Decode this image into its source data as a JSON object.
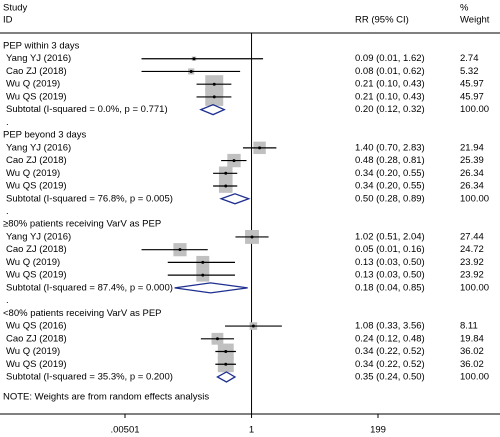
{
  "chart_data": {
    "type": "forest",
    "header": {
      "study": "Study",
      "id": "ID",
      "effect": "RR (95% CI)",
      "pct": "%",
      "weight": "Weight"
    },
    "log": true,
    "xlim": [
      0.00501,
      199
    ],
    "xticks": [
      {
        "value": 0.00501,
        "label": ".00501"
      },
      1,
      199
    ],
    "null_line": 1,
    "box_color": "#c0c0c0",
    "diamond_color": "#1f2f8f",
    "groups": [
      {
        "name": "PEP within 3 days",
        "studies": [
          {
            "id": "Yang YJ (2016)",
            "rr": 0.09,
            "lower": 0.01,
            "upper": 1.62,
            "label": "0.09 (0.01, 1.62)",
            "weight": 2.74
          },
          {
            "id": "Cao ZJ (2018)",
            "rr": 0.08,
            "lower": 0.01,
            "upper": 0.62,
            "label": "0.08 (0.01, 0.62)",
            "weight": 5.32
          },
          {
            "id": "Wu Q (2019)",
            "rr": 0.21,
            "lower": 0.1,
            "upper": 0.43,
            "label": "0.21 (0.10, 0.43)",
            "weight": 45.97
          },
          {
            "id": "Wu QS (2019)",
            "rr": 0.21,
            "lower": 0.1,
            "upper": 0.43,
            "label": "0.21 (0.10, 0.43)",
            "weight": 45.97
          }
        ],
        "subtotal": {
          "name": "Subtotal  (I-squared = 0.0%, p = 0.771)",
          "rr": 0.2,
          "lower": 0.12,
          "upper": 0.32,
          "label": "0.20 (0.12, 0.32)",
          "weight": {
            "value": 100,
            "label": "100.00"
          }
        }
      },
      {
        "dot": ".",
        "name": "PEP beyond 3 days",
        "studies": [
          {
            "id": "Yang YJ (2016)",
            "rr": 1.4,
            "lower": 0.7,
            "upper": 2.83,
            "label": "1.40 (0.70, 2.83)",
            "weight": 21.94
          },
          {
            "id": "Cao ZJ (2018)",
            "rr": 0.48,
            "lower": 0.28,
            "upper": 0.81,
            "label": "0.48 (0.28, 0.81)",
            "weight": 25.39
          },
          {
            "id": "Wu Q (2019)",
            "rr": 0.34,
            "lower": 0.2,
            "upper": 0.55,
            "label": "0.34 (0.20, 0.55)",
            "weight": 26.34
          },
          {
            "id": "Wu QS (2019)",
            "rr": 0.34,
            "lower": 0.2,
            "upper": 0.55,
            "label": "0.34 (0.20, 0.55)",
            "weight": 26.34
          }
        ],
        "subtotal": {
          "name": "Subtotal  (I-squared = 76.8%, p = 0.005)",
          "rr": 0.5,
          "lower": 0.28,
          "upper": 0.89,
          "label": "0.50 (0.28, 0.89)",
          "weight": {
            "value": 100,
            "label": "100.00"
          }
        }
      },
      {
        "dot": ".",
        "name": "≥80% patients receiving VarV as PEP",
        "studies": [
          {
            "id": "Yang YJ (2016)",
            "rr": 1.02,
            "lower": 0.51,
            "upper": 2.04,
            "label": "1.02 (0.51, 2.04)",
            "weight": 27.44
          },
          {
            "id": "Cao ZJ (2018)",
            "rr": 0.05,
            "lower": 0.01,
            "upper": 0.16,
            "label": "0.05 (0.01, 0.16)",
            "weight": 24.72
          },
          {
            "id": "Wu Q (2019)",
            "rr": 0.13,
            "lower": 0.03,
            "upper": 0.5,
            "label": "0.13 (0.03, 0.50)",
            "weight": 23.92
          },
          {
            "id": "Wu QS (2019)",
            "rr": 0.13,
            "lower": 0.03,
            "upper": 0.5,
            "label": "0.13 (0.03, 0.50)",
            "weight": 23.92
          }
        ],
        "subtotal": {
          "name": "Subtotal  (I-squared = 87.4%, p = 0.000)",
          "rr": 0.18,
          "lower": 0.04,
          "upper": 0.85,
          "label": "0.18 (0.04, 0.85)",
          "weight": {
            "value": 100,
            "label": "100.00"
          }
        }
      },
      {
        "dot": ".",
        "name": "<80% patients receiving VarV as PEP",
        "studies": [
          {
            "id": "Wu QS (2016)",
            "rr": 1.08,
            "lower": 0.33,
            "upper": 3.56,
            "label": "1.08 (0.33, 3.56)",
            "weight": 8.11
          },
          {
            "id": "Cao ZJ (2018)",
            "rr": 0.24,
            "lower": 0.12,
            "upper": 0.48,
            "label": "0.24 (0.12, 0.48)",
            "weight": 19.84
          },
          {
            "id": "Wu Q (2019)",
            "rr": 0.34,
            "lower": 0.22,
            "upper": 0.52,
            "label": "0.34 (0.22, 0.52)",
            "weight": 36.02
          },
          {
            "id": "Wu QS (2019)",
            "rr": 0.34,
            "lower": 0.22,
            "upper": 0.52,
            "label": "0.34 (0.22, 0.52)",
            "weight": 36.02
          }
        ],
        "subtotal": {
          "name": "Subtotal  (I-squared = 35.3%, p = 0.200)",
          "rr": 0.35,
          "lower": 0.24,
          "upper": 0.5,
          "label": "0.35 (0.24, 0.50)",
          "weight": {
            "value": 100,
            "label": "100.00"
          }
        }
      }
    ],
    "note": "NOTE: Weights are from random effects analysis"
  }
}
